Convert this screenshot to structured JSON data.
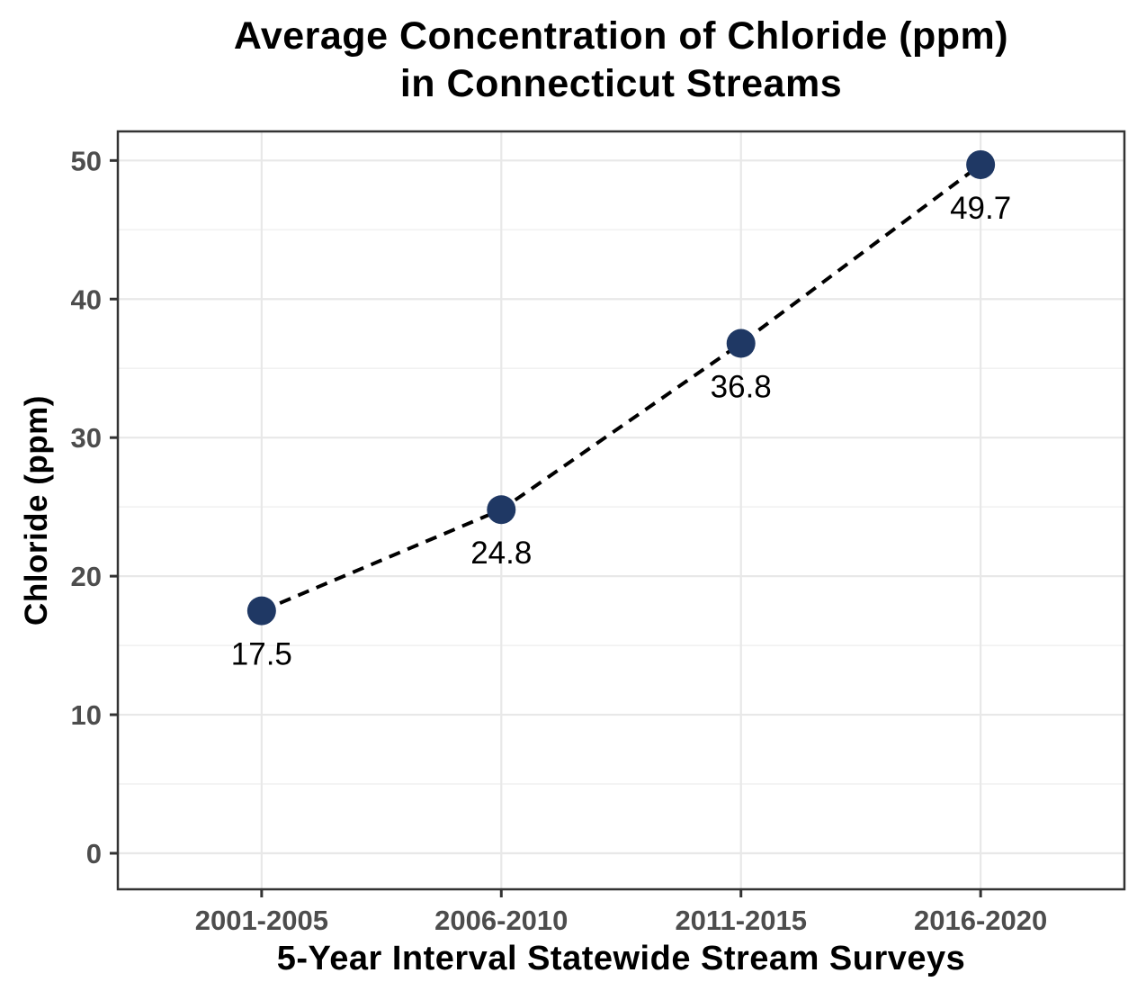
{
  "figure": {
    "title_line1": "Average Concentration of Chloride (ppm)",
    "title_line2": "in Connecticut Streams"
  },
  "chart_data": {
    "type": "line",
    "title": "Average Concentration of Chloride (ppm) in Connecticut Streams",
    "xlabel": "5-Year Interval Statewide Stream Surveys",
    "ylabel": "Chloride (ppm)",
    "categories": [
      "2001-2005",
      "2006-2010",
      "2011-2015",
      "2016-2020"
    ],
    "values": [
      17.5,
      24.8,
      36.8,
      49.7
    ],
    "point_labels": [
      "17.5",
      "24.8",
      "36.8",
      "49.7"
    ],
    "ylim": [
      -2.6,
      52.1
    ],
    "yticks": [
      0,
      10,
      20,
      30,
      40,
      50
    ],
    "ytick_labels": [
      "0",
      "10",
      "20",
      "30",
      "40",
      "50"
    ],
    "yticks_minor": [
      5,
      15,
      25,
      35,
      45
    ],
    "grid": "major+minor horizontal, major vertical at categories",
    "legend": "none",
    "line_style": "dashed",
    "marker": "filled-circle",
    "colors": {
      "point": "#1f3864",
      "line": "#000000",
      "grid_major": "#e8e8e8",
      "grid_minor": "#f1f1f1",
      "axis_text": "#4d4d4d",
      "label_text": "#000000",
      "panel_border": "#333333",
      "background": "#ffffff"
    }
  }
}
